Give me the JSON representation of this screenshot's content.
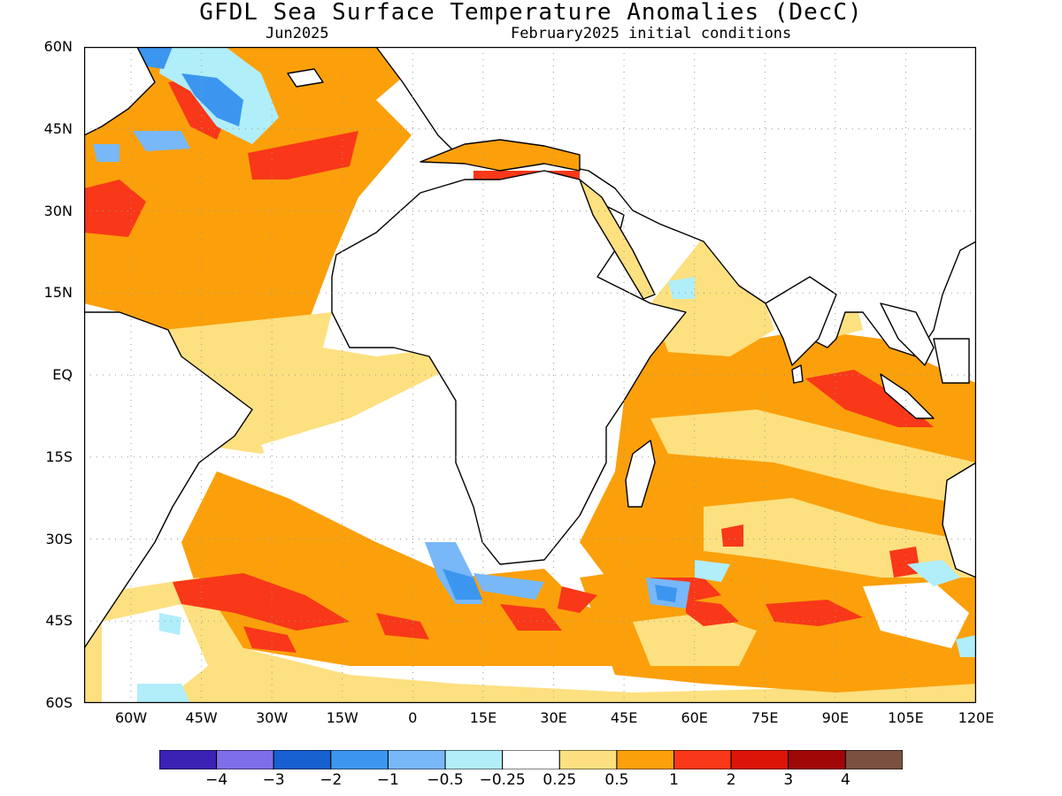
{
  "title": "GFDL Sea Surface Temperature Anomalies (DecC)",
  "subtitle_left": "Jun2025",
  "subtitle_right": "February2025 initial conditions",
  "map": {
    "lon_range": [
      -70,
      120
    ],
    "lat_range": [
      -60,
      60
    ],
    "lon_ticks": [
      "60W",
      "45W",
      "30W",
      "15W",
      "0",
      "15E",
      "30E",
      "45E",
      "60E",
      "75E",
      "90E",
      "105E",
      "120E"
    ],
    "lon_tick_values": [
      -60,
      -45,
      -30,
      -15,
      0,
      15,
      30,
      45,
      60,
      75,
      90,
      105,
      120
    ],
    "lat_ticks": [
      "60N",
      "45N",
      "30N",
      "15N",
      "EQ",
      "15S",
      "30S",
      "45S",
      "60S"
    ],
    "lat_tick_values": [
      60,
      45,
      30,
      15,
      0,
      -15,
      -30,
      -45,
      -60
    ],
    "grid": true
  },
  "colorbar": {
    "colors": [
      "#3b22b4",
      "#7e6ee8",
      "#1760d0",
      "#3c96f0",
      "#78b8f8",
      "#b0eefa",
      "#ffffff",
      "#fde080",
      "#fba00a",
      "#f83818",
      "#dc1508",
      "#a00808",
      "#7a5040"
    ],
    "labels": [
      "−4",
      "−3",
      "−2",
      "−1",
      "−0.5",
      "−0.25",
      "0.25",
      "0.5",
      "1",
      "2",
      "3",
      "4"
    ]
  },
  "colors": {
    "land": "#ffffff",
    "coast": "#000000",
    "grid": "#9a9a9a",
    "frame": "#000000"
  }
}
